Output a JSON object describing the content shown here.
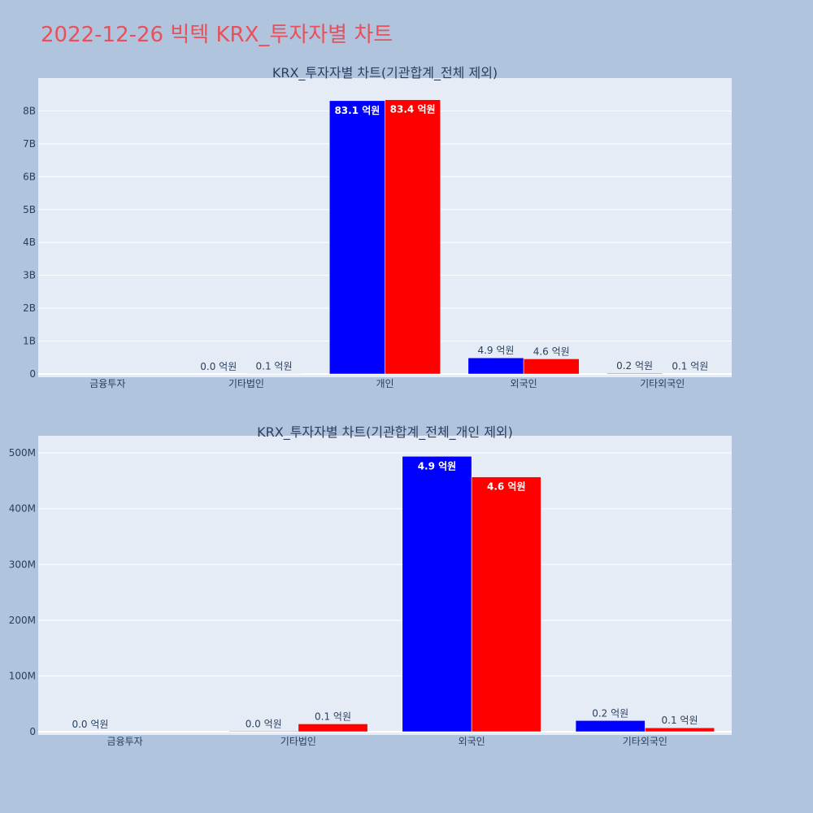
{
  "page_title": "2022-12-26 빅텍 KRX_투자자별 차트",
  "colors": {
    "background": "#b0c4de",
    "plot_bg": "#e5ecf6",
    "title": "#e8505b",
    "series_a": "#0000ff",
    "series_b": "#ff0000"
  },
  "chart_data": [
    {
      "type": "bar",
      "title": "KRX_투자자별 차트(기관합계_전체 제외)",
      "categories": [
        "금융투자",
        "기타법인",
        "개인",
        "외국인",
        "기타외국인"
      ],
      "ylim": [
        0,
        8900000000
      ],
      "yticks": [
        0,
        1000000000,
        2000000000,
        3000000000,
        4000000000,
        5000000000,
        6000000000,
        7000000000,
        8000000000
      ],
      "ytick_labels": [
        "0",
        "1B",
        "2B",
        "3B",
        "4B",
        "5B",
        "6B",
        "7B",
        "8B"
      ],
      "grid": true,
      "series": [
        {
          "values": [
            0,
            1000000,
            8310000000,
            490000000,
            20000000
          ],
          "labels": [
            "",
            "0.0 억원",
            "83.1 억원",
            "4.9 억원",
            "0.2 억원"
          ]
        },
        {
          "values": [
            0,
            14000000,
            8340000000,
            460000000,
            7000000
          ],
          "labels": [
            "",
            "0.1 억원",
            "83.4 억원",
            "4.6 억원",
            "0.1 억원"
          ]
        }
      ]
    },
    {
      "type": "bar",
      "title": "KRX_투자자별 차트(기관합계_전체_개인 제외)",
      "categories": [
        "금융투자",
        "기타법인",
        "외국인",
        "기타외국인"
      ],
      "ylim": [
        0,
        525000000
      ],
      "yticks": [
        0,
        100000000,
        200000000,
        300000000,
        400000000,
        500000000
      ],
      "ytick_labels": [
        "0",
        "100M",
        "200M",
        "300M",
        "400M",
        "500M"
      ],
      "grid": true,
      "series": [
        {
          "values": [
            0,
            1000000,
            494000000,
            20000000
          ],
          "labels": [
            "0.0 억원",
            "0.0 억원",
            "4.9 억원",
            "0.2 억원"
          ]
        },
        {
          "values": [
            0,
            14000000,
            457000000,
            7000000
          ],
          "labels": [
            "",
            "0.1 억원",
            "4.6 억원",
            "0.1 억원"
          ]
        }
      ]
    }
  ]
}
